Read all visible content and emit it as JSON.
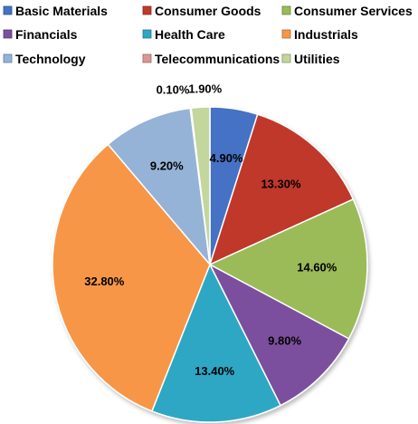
{
  "chart_data": {
    "type": "pie",
    "title": "",
    "legend_position": "top",
    "categories": [
      "Basic Materials",
      "Consumer Goods",
      "Consumer Services",
      "Financials",
      "Health Care",
      "Industrials",
      "Technology",
      "Telecommunications",
      "Utilities"
    ],
    "values": [
      4.9,
      13.3,
      14.6,
      9.8,
      13.4,
      32.8,
      9.2,
      0.1,
      1.9
    ],
    "labels": [
      "4.90%",
      "13.30%",
      "14.60%",
      "9.80%",
      "13.40%",
      "32.80%",
      "9.20%",
      "0.10%",
      "1.90%"
    ],
    "colors": [
      "#4472C4",
      "#C0392B",
      "#9BBB59",
      "#7B4F9E",
      "#2FA7C4",
      "#F79646",
      "#95B3D7",
      "#D99694",
      "#C3D69B"
    ],
    "start_angle_deg": 0,
    "direction": "clockwise"
  }
}
